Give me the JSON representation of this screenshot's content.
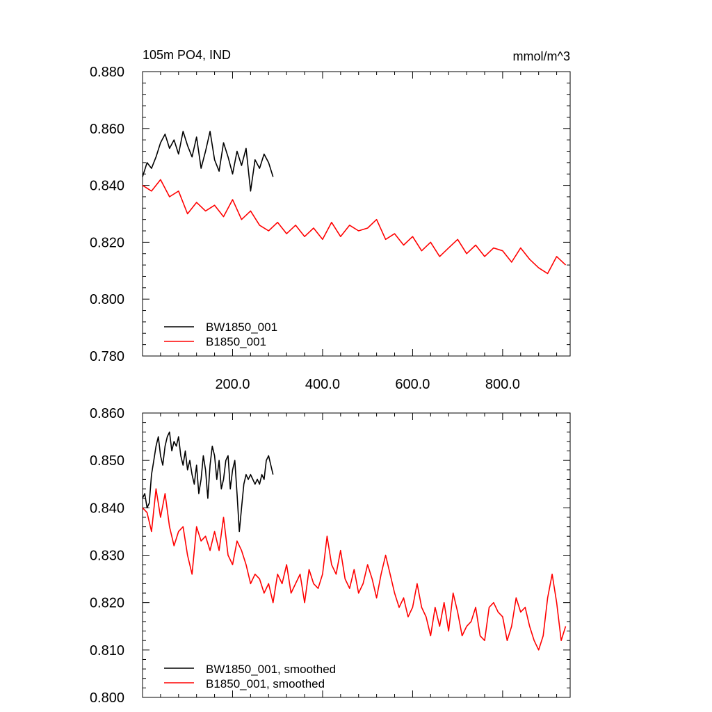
{
  "chart_data": [
    {
      "type": "line",
      "title_left": "105m PO4, IND",
      "title_right": "mmol/m^3",
      "xlim": [
        0,
        950
      ],
      "ylim": [
        0.78,
        0.88
      ],
      "x_ticks": [
        200,
        400,
        600,
        800
      ],
      "x_tick_labels": [
        "200.0",
        "400.0",
        "600.0",
        "800.0"
      ],
      "y_ticks": [
        0.78,
        0.8,
        0.82,
        0.84,
        0.86,
        0.88
      ],
      "y_tick_labels": [
        "0.780",
        "0.800",
        "0.820",
        "0.840",
        "0.860",
        "0.880"
      ],
      "legend_position": "bottom-left",
      "series": [
        {
          "name": "BW1850_001",
          "color": "#000000",
          "x": [
            0,
            10,
            20,
            30,
            40,
            50,
            60,
            70,
            80,
            90,
            100,
            110,
            120,
            130,
            140,
            150,
            160,
            170,
            180,
            190,
            200,
            210,
            220,
            230,
            240,
            250,
            260,
            270,
            280,
            290
          ],
          "y": [
            0.843,
            0.848,
            0.846,
            0.85,
            0.855,
            0.858,
            0.853,
            0.856,
            0.851,
            0.859,
            0.854,
            0.85,
            0.857,
            0.846,
            0.852,
            0.859,
            0.849,
            0.845,
            0.855,
            0.85,
            0.844,
            0.852,
            0.847,
            0.853,
            0.838,
            0.849,
            0.846,
            0.851,
            0.848,
            0.843
          ]
        },
        {
          "name": "B1850_001",
          "color": "#ff0000",
          "x": [
            0,
            20,
            40,
            60,
            80,
            100,
            120,
            140,
            160,
            180,
            200,
            220,
            240,
            260,
            280,
            300,
            320,
            340,
            360,
            380,
            400,
            420,
            440,
            460,
            480,
            500,
            520,
            540,
            560,
            580,
            600,
            620,
            640,
            660,
            680,
            700,
            720,
            740,
            760,
            780,
            800,
            820,
            840,
            860,
            880,
            900,
            920,
            940
          ],
          "y": [
            0.84,
            0.838,
            0.842,
            0.836,
            0.838,
            0.83,
            0.834,
            0.831,
            0.833,
            0.829,
            0.835,
            0.828,
            0.831,
            0.826,
            0.824,
            0.827,
            0.823,
            0.826,
            0.822,
            0.825,
            0.821,
            0.827,
            0.822,
            0.826,
            0.824,
            0.825,
            0.828,
            0.821,
            0.823,
            0.819,
            0.822,
            0.817,
            0.82,
            0.815,
            0.818,
            0.821,
            0.816,
            0.819,
            0.815,
            0.818,
            0.817,
            0.813,
            0.818,
            0.814,
            0.811,
            0.809,
            0.815,
            0.812
          ]
        }
      ]
    },
    {
      "type": "line",
      "xlim": [
        0,
        950
      ],
      "ylim": [
        0.8,
        0.86
      ],
      "y_ticks": [
        0.8,
        0.81,
        0.82,
        0.83,
        0.84,
        0.85,
        0.86
      ],
      "y_tick_labels": [
        "0.800",
        "0.810",
        "0.820",
        "0.830",
        "0.840",
        "0.850",
        "0.860"
      ],
      "legend_position": "bottom-left",
      "series": [
        {
          "name": "BW1850_001, smoothed",
          "color": "#000000",
          "x": [
            0,
            5,
            10,
            15,
            20,
            25,
            30,
            35,
            40,
            45,
            50,
            55,
            60,
            65,
            70,
            75,
            80,
            85,
            90,
            95,
            100,
            105,
            110,
            115,
            120,
            125,
            130,
            135,
            140,
            145,
            150,
            155,
            160,
            165,
            170,
            175,
            180,
            185,
            190,
            195,
            200,
            205,
            210,
            215,
            220,
            225,
            230,
            235,
            240,
            245,
            250,
            255,
            260,
            265,
            270,
            275,
            280,
            285,
            290
          ],
          "y": [
            0.842,
            0.843,
            0.84,
            0.841,
            0.847,
            0.85,
            0.853,
            0.855,
            0.851,
            0.849,
            0.853,
            0.855,
            0.856,
            0.852,
            0.854,
            0.853,
            0.855,
            0.851,
            0.849,
            0.852,
            0.848,
            0.85,
            0.847,
            0.845,
            0.849,
            0.843,
            0.846,
            0.851,
            0.848,
            0.842,
            0.849,
            0.853,
            0.851,
            0.846,
            0.85,
            0.844,
            0.846,
            0.85,
            0.851,
            0.844,
            0.848,
            0.85,
            0.843,
            0.835,
            0.84,
            0.845,
            0.847,
            0.846,
            0.847,
            0.846,
            0.845,
            0.846,
            0.845,
            0.847,
            0.846,
            0.85,
            0.851,
            0.849,
            0.847
          ]
        },
        {
          "name": "B1850_001, smoothed",
          "color": "#ff0000",
          "x": [
            0,
            10,
            20,
            30,
            40,
            50,
            60,
            70,
            80,
            90,
            100,
            110,
            120,
            130,
            140,
            150,
            160,
            170,
            180,
            190,
            200,
            210,
            220,
            230,
            240,
            250,
            260,
            270,
            280,
            290,
            300,
            310,
            320,
            330,
            340,
            350,
            360,
            370,
            380,
            390,
            400,
            410,
            420,
            430,
            440,
            450,
            460,
            470,
            480,
            490,
            500,
            510,
            520,
            530,
            540,
            550,
            560,
            570,
            580,
            590,
            600,
            610,
            620,
            630,
            640,
            650,
            660,
            670,
            680,
            690,
            700,
            710,
            720,
            730,
            740,
            750,
            760,
            770,
            780,
            790,
            800,
            810,
            820,
            830,
            840,
            850,
            860,
            870,
            880,
            890,
            900,
            910,
            920,
            930,
            940
          ],
          "y": [
            0.84,
            0.839,
            0.835,
            0.844,
            0.838,
            0.843,
            0.836,
            0.832,
            0.835,
            0.836,
            0.83,
            0.826,
            0.836,
            0.833,
            0.834,
            0.831,
            0.835,
            0.831,
            0.838,
            0.83,
            0.828,
            0.833,
            0.831,
            0.828,
            0.824,
            0.826,
            0.825,
            0.822,
            0.824,
            0.82,
            0.826,
            0.824,
            0.828,
            0.822,
            0.824,
            0.826,
            0.82,
            0.827,
            0.824,
            0.823,
            0.826,
            0.834,
            0.828,
            0.826,
            0.831,
            0.825,
            0.823,
            0.827,
            0.822,
            0.824,
            0.828,
            0.825,
            0.821,
            0.826,
            0.83,
            0.826,
            0.822,
            0.819,
            0.821,
            0.817,
            0.819,
            0.824,
            0.819,
            0.817,
            0.813,
            0.819,
            0.815,
            0.82,
            0.814,
            0.822,
            0.818,
            0.813,
            0.815,
            0.816,
            0.819,
            0.813,
            0.812,
            0.819,
            0.82,
            0.818,
            0.817,
            0.812,
            0.815,
            0.821,
            0.818,
            0.819,
            0.815,
            0.812,
            0.81,
            0.813,
            0.821,
            0.826,
            0.82,
            0.812,
            0.815
          ]
        }
      ]
    }
  ]
}
